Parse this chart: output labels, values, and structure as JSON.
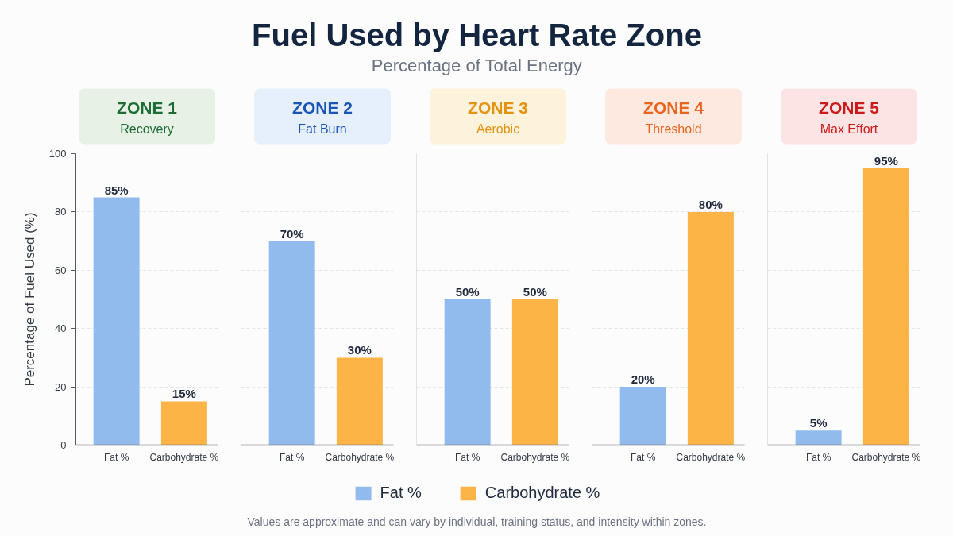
{
  "chart_data": [
    {
      "type": "other",
      "title": "Fuel Used by Heart Rate Zone",
      "subtitle": "Percentage of Total Energy",
      "annotations": [
        "Values are approximate and can vary by individual, training status, and intensity within zones."
      ]
    },
    {
      "type": "bar",
      "title": "ZONE 1",
      "subtitle": "Recovery",
      "categories": [
        "Fat %",
        "Carbohydrate %"
      ],
      "stacked": true,
      "series": [
        {
          "name": "Fat %",
          "color": "#90bbec",
          "values": [
            85,
            null
          ],
          "value_labels": [
            "85%",
            null
          ]
        },
        {
          "name": "Carbohydrate %",
          "color": "#fbb445",
          "values": [
            null,
            15
          ],
          "value_labels": [
            null,
            "15%"
          ]
        }
      ],
      "ylabel": "Percentage of Fuel Used (%)",
      "ylim": [
        0,
        100
      ],
      "yticks": [
        0,
        20,
        40,
        60,
        80,
        100
      ],
      "grid": "y",
      "legend": "bottom"
    },
    {
      "type": "bar",
      "title": "ZONE 2",
      "subtitle": "Fat Burn",
      "categories": [
        "Fat %",
        "Carbohydrate %"
      ],
      "values": [
        70,
        30
      ],
      "colors": [
        "#90bbec",
        "#fbb445"
      ],
      "value_labels": [
        "70%",
        "30%"
      ],
      "ylim": [
        0,
        100
      ],
      "yticks": [
        0,
        20,
        40,
        60,
        80,
        100
      ],
      "grid": "y",
      "tick_labels": "x"
    },
    {
      "type": "bar",
      "title": "ZONE 3",
      "subtitle": "Aerobic",
      "categories": [
        "Fat %",
        "Carbohydrate %"
      ],
      "values": [
        50,
        50
      ],
      "colors": [
        "#90bbec",
        "#fbb445"
      ],
      "value_labels": [
        "50%",
        "50%"
      ],
      "ylim": [
        0,
        100
      ],
      "yticks": [
        0,
        20,
        40,
        60,
        80,
        100
      ],
      "grid": "y",
      "tick_labels": "x"
    },
    {
      "type": "bar",
      "title": "ZONE 4",
      "subtitle": "Threshold",
      "categories": [
        "Fat %",
        "Carbohydrate %"
      ],
      "values": [
        20,
        80
      ],
      "colors": [
        "#90bbec",
        "#fbb445"
      ],
      "value_labels": [
        "20%",
        "80%"
      ],
      "ylim": [
        0,
        100
      ],
      "yticks": [
        0,
        20,
        40,
        60,
        80,
        100
      ],
      "grid": "y",
      "tick_labels": "x"
    },
    {
      "type": "bar",
      "title": "ZONE 5",
      "subtitle": "Max Effort",
      "categories": [
        "Fat %",
        "Carbohydrate %"
      ],
      "values": [
        5,
        95
      ],
      "colors": [
        "#90bbec",
        "#fbb445"
      ],
      "value_labels": [
        "5%",
        "95%"
      ],
      "ylim": [
        0,
        100
      ],
      "yticks": [
        0,
        20,
        40,
        60,
        80,
        100
      ],
      "grid": "y",
      "tick_labels": "x"
    }
  ]
}
